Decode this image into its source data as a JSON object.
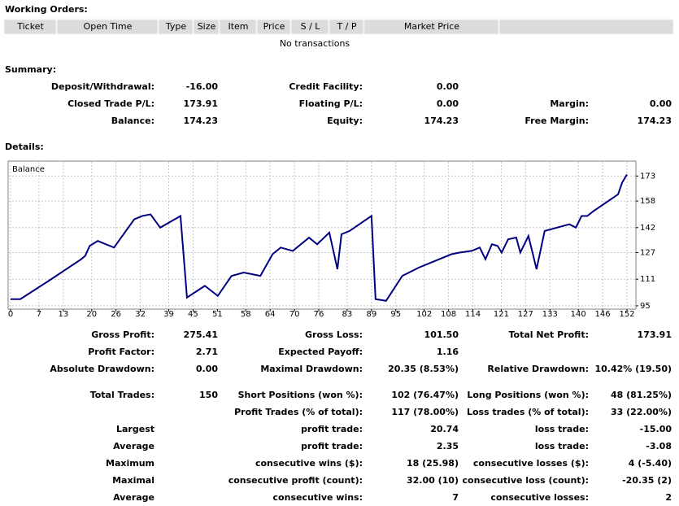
{
  "working_orders": {
    "title": "Working Orders:",
    "columns": [
      "Ticket",
      "Open Time",
      "Type",
      "Size",
      "Item",
      "Price",
      "S / L",
      "T / P",
      "Market Price"
    ],
    "empty_message": "No transactions"
  },
  "summary": {
    "title": "Summary:",
    "rows": [
      {
        "left": {
          "label": "Deposit/Withdrawal:",
          "value": "-16.00"
        },
        "middle": {
          "label": "Credit Facility:",
          "value": "0.00"
        }
      },
      {
        "left": {
          "label": "Closed Trade P/L:",
          "value": "173.91"
        },
        "middle": {
          "label": "Floating P/L:",
          "value": "0.00"
        },
        "right": {
          "label": "Margin:",
          "value": "0.00"
        }
      },
      {
        "left": {
          "label": "Balance:",
          "value": "174.23"
        },
        "middle": {
          "label": "Equity:",
          "value": "174.23"
        },
        "right": {
          "label": "Free Margin:",
          "value": "174.23"
        }
      }
    ]
  },
  "details": {
    "title": "Details:",
    "stats": [
      {
        "left": {
          "label": "Gross Profit:",
          "value": "275.41"
        },
        "middle": {
          "label": "Gross Loss:",
          "value": "101.50"
        },
        "right": {
          "label": "Total Net Profit:",
          "value": "173.91"
        }
      },
      {
        "left": {
          "label": "Profit Factor:",
          "value": "2.71"
        },
        "middle": {
          "label": "Expected Payoff:",
          "value": "1.16"
        }
      },
      {
        "left": {
          "label": "Absolute Drawdown:",
          "value": "0.00"
        },
        "middle": {
          "label": "Maximal Drawdown:",
          "value": "20.35 (8.53%)"
        },
        "right": {
          "label": "Relative Drawdown:",
          "value": "10.42% (19.50)"
        }
      }
    ],
    "trades": [
      {
        "left": {
          "label": "Total Trades:",
          "value": "150"
        },
        "middle": {
          "label": "Short Positions (won %):",
          "value": "102 (76.47%)"
        },
        "right": {
          "label": "Long Positions (won %):",
          "value": "48 (81.25%)"
        }
      },
      {
        "middle": {
          "label": "Profit Trades (% of total):",
          "value": "117 (78.00%)"
        },
        "right": {
          "label": "Loss trades (% of total):",
          "value": "33 (22.00%)"
        }
      },
      {
        "left": {
          "label": "Largest"
        },
        "middle": {
          "label": "profit trade:",
          "value": "20.74"
        },
        "right": {
          "label": "loss trade:",
          "value": "-15.00"
        }
      },
      {
        "left": {
          "label": "Average"
        },
        "middle": {
          "label": "profit trade:",
          "value": "2.35"
        },
        "right": {
          "label": "loss trade:",
          "value": "-3.08"
        }
      },
      {
        "left": {
          "label": "Maximum"
        },
        "middle": {
          "label": "consecutive wins ($):",
          "value": "18 (25.98)"
        },
        "right": {
          "label": "consecutive losses ($):",
          "value": "4 (-5.40)"
        }
      },
      {
        "left": {
          "label": "Maximal"
        },
        "middle": {
          "label": "consecutive profit (count):",
          "value": "32.00 (10)"
        },
        "right": {
          "label": "consecutive loss (count):",
          "value": "-20.35 (2)"
        }
      },
      {
        "left": {
          "label": "Average"
        },
        "middle": {
          "label": "consecutive wins:",
          "value": "7"
        },
        "right": {
          "label": "consecutive losses:",
          "value": "2"
        }
      }
    ]
  },
  "chart_data": {
    "type": "line",
    "x": [
      0,
      2.4,
      9.4,
      17.4,
      18.4,
      19.5,
      21.5,
      25.5,
      30.5,
      32.5,
      34.5,
      36.9,
      41.9,
      43.5,
      47.9,
      49.5,
      51.1,
      54.5,
      57.5,
      61.6,
      64.6,
      66.6,
      69.6,
      73.6,
      75.6,
      78.6,
      80.6,
      81.6,
      83.6,
      89,
      90,
      92.6,
      96.6,
      100.7,
      104.7,
      108.7,
      110.7,
      113.7,
      115.7,
      117.1,
      118.7,
      120.1,
      121.1,
      122.7,
      124.7,
      125.7,
      127.7,
      129.7,
      131.7,
      137.8,
      139.4,
      140.8,
      142.2,
      143.8,
      146.8,
      149.8,
      150.8,
      152
    ],
    "series": [
      {
        "name": "Balance",
        "color": "#000080",
        "values": [
          99,
          99,
          110,
          123,
          125,
          131,
          134,
          130,
          147,
          149,
          150,
          142,
          149,
          100,
          107,
          104,
          101,
          113,
          115,
          113,
          126,
          130,
          128,
          136,
          132,
          139,
          117,
          138,
          140,
          149,
          99,
          98,
          113,
          118,
          122,
          126,
          127,
          128,
          130,
          123,
          132,
          131,
          127,
          135,
          136,
          127,
          137,
          117,
          140,
          144,
          142,
          149,
          149,
          152,
          157,
          162,
          169,
          174
        ]
      }
    ],
    "xlim": [
      0,
      154
    ],
    "ylim": [
      93,
      182
    ],
    "xticks": [
      0,
      7,
      13,
      20,
      26,
      32,
      39,
      45,
      51,
      58,
      64,
      70,
      76,
      83,
      89,
      95,
      102,
      108,
      114,
      121,
      127,
      133,
      140,
      146,
      152
    ],
    "yticks": [
      95,
      111,
      127,
      142,
      158,
      173
    ],
    "grid": true
  }
}
